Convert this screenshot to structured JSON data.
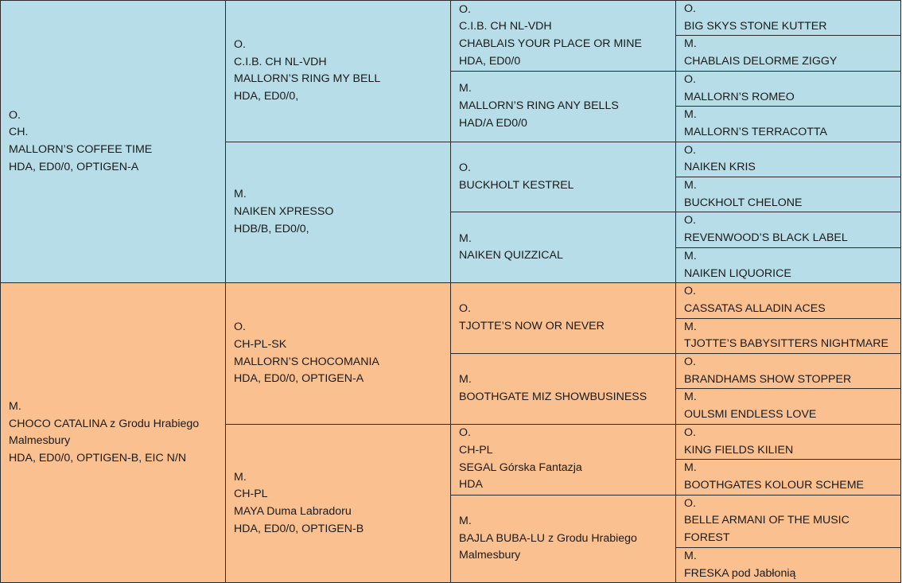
{
  "colors": {
    "sire_side": "#b7dde8",
    "dam_side": "#fac090",
    "border": "#2b2b2b"
  },
  "pedigree": {
    "gen1": [
      [
        "O.",
        "CH.",
        "MALLORN’S COFFEE TIME",
        "HDA, ED0/0, OPTIGEN-A"
      ],
      [
        "M.",
        "CHOCO CATALINA z Grodu Hrabiego",
        "Malmesbury",
        "HDA, ED0/0, OPTIGEN-B, EIC N/N"
      ]
    ],
    "gen2": [
      [
        "O.",
        "C.I.B. CH NL-VDH",
        "MALLORN’S  RING MY BELL",
        "HDA, ED0/0,"
      ],
      [
        "M.",
        "NAIKEN XPRESSO",
        "HDB/B, ED0/0,"
      ],
      [
        "O.",
        "CH-PL-SK",
        "MALLORN’S CHOCOMANIA",
        "HDA, ED0/0, OPTIGEN-A"
      ],
      [
        "M.",
        "CH-PL",
        "MAYA Duma Labradoru",
        "HDA, ED0/0, OPTIGEN-B"
      ]
    ],
    "gen3": [
      [
        "O.",
        "C.I.B. CH NL-VDH",
        "CHABLAIS YOUR PLACE OR MINE",
        "HDA, ED0/0"
      ],
      [
        "M.",
        "MALLORN’S RING ANY BELLS",
        "HAD/A ED0/0"
      ],
      [
        "O.",
        "BUCKHOLT KESTREL"
      ],
      [
        "M.",
        "NAIKEN QUIZZICAL"
      ],
      [
        "O.",
        "TJOTTE’S NOW OR NEVER"
      ],
      [
        "M.",
        "BOOTHGATE MIZ SHOWBUSINESS"
      ],
      [
        "O.",
        "CH-PL",
        "SEGAL Górska Fantazja",
        "HDA"
      ],
      [
        "M.",
        "BAJLA BUBA-LU z Grodu Hrabiego",
        "Malmesbury"
      ]
    ],
    "gen4": [
      [
        "O.",
        "BIG SKYS STONE KUTTER"
      ],
      [
        "M.",
        "CHABLAIS DELORME ZIGGY"
      ],
      [
        "O.",
        "MALLORN’S ROMEO"
      ],
      [
        "M.",
        "MALLORN’S TERRACOTTA"
      ],
      [
        "O.",
        "NAIKEN KRIS"
      ],
      [
        "M.",
        "BUCKHOLT CHELONE"
      ],
      [
        "O.",
        "REVENWOOD’S BLACK LABEL"
      ],
      [
        "M.",
        "NAIKEN LIQUORICE"
      ],
      [
        "O.",
        "CASSATAS ALLADIN ACES"
      ],
      [
        "M.",
        "TJOTTE’S BABYSITTERS NIGHTMARE"
      ],
      [
        "O.",
        "BRANDHAMS SHOW STOPPER"
      ],
      [
        "M.",
        "OULSMI ENDLESS LOVE"
      ],
      [
        "O.",
        "KING FIELDS KILIEN"
      ],
      [
        "M.",
        "BOOTHGATES KOLOUR SCHEME"
      ],
      [
        "O.",
        "BELLE ARMANI OF THE MUSIC",
        "FOREST"
      ],
      [
        "M.",
        "FRESKA pod Jabłonią"
      ]
    ]
  }
}
